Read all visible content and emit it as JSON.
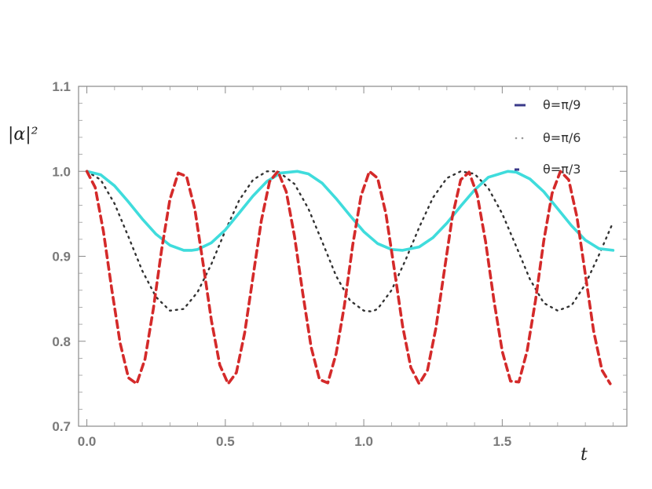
{
  "chart_data": {
    "type": "line",
    "title": "",
    "xlabel": "t",
    "ylabel": "|α|²",
    "xlim": [
      -0.03,
      1.95
    ],
    "ylim": [
      0.7,
      1.1
    ],
    "x_ticks": [
      0.0,
      0.5,
      1.0,
      1.5
    ],
    "x_tick_labels": [
      "0.0",
      "0.5",
      "1.0",
      "1.5"
    ],
    "y_ticks": [
      0.7,
      0.8,
      0.9,
      1.0,
      1.1
    ],
    "y_tick_labels": [
      "0.7",
      "0.8",
      "0.9",
      "1.0",
      "1.1"
    ],
    "grid": false,
    "legend_position": "top-right",
    "series": [
      {
        "name": "θ=π/9",
        "color": "#3fdcdc",
        "style": "solid",
        "legend_color": "#3a3a8a",
        "x": [
          0.0,
          0.05,
          0.1,
          0.15,
          0.2,
          0.25,
          0.3,
          0.35,
          0.38,
          0.4,
          0.45,
          0.5,
          0.55,
          0.6,
          0.65,
          0.7,
          0.76,
          0.8,
          0.85,
          0.9,
          0.95,
          1.0,
          1.05,
          1.1,
          1.14,
          1.2,
          1.25,
          1.3,
          1.35,
          1.4,
          1.45,
          1.52,
          1.55,
          1.6,
          1.65,
          1.7,
          1.75,
          1.8,
          1.85,
          1.9
        ],
        "y": [
          1.0,
          0.996,
          0.983,
          0.964,
          0.944,
          0.926,
          0.913,
          0.907,
          0.907,
          0.908,
          0.916,
          0.931,
          0.951,
          0.971,
          0.988,
          0.998,
          1.0,
          0.997,
          0.986,
          0.968,
          0.948,
          0.929,
          0.915,
          0.908,
          0.907,
          0.911,
          0.922,
          0.939,
          0.959,
          0.978,
          0.993,
          1.0,
          0.999,
          0.991,
          0.976,
          0.956,
          0.936,
          0.919,
          0.909,
          0.907
        ]
      },
      {
        "name": "θ=π/6",
        "color": "#333333",
        "style": "dotted",
        "legend_color": "#999999",
        "x": [
          0.0,
          0.05,
          0.1,
          0.15,
          0.2,
          0.25,
          0.3,
          0.35,
          0.4,
          0.45,
          0.5,
          0.55,
          0.6,
          0.65,
          0.69,
          0.75,
          0.8,
          0.85,
          0.9,
          0.95,
          1.0,
          1.03,
          1.05,
          1.1,
          1.15,
          1.2,
          1.25,
          1.3,
          1.35,
          1.4,
          1.45,
          1.5,
          1.55,
          1.6,
          1.65,
          1.7,
          1.75,
          1.8,
          1.85,
          1.9
        ],
        "y": [
          1.0,
          0.99,
          0.962,
          0.923,
          0.883,
          0.852,
          0.836,
          0.838,
          0.858,
          0.891,
          0.93,
          0.966,
          0.99,
          1.0,
          1.0,
          0.985,
          0.956,
          0.917,
          0.877,
          0.848,
          0.836,
          0.835,
          0.838,
          0.86,
          0.895,
          0.934,
          0.969,
          0.992,
          1.0,
          0.997,
          0.98,
          0.95,
          0.912,
          0.873,
          0.845,
          0.836,
          0.842,
          0.867,
          0.902,
          0.94
        ]
      },
      {
        "name": "θ=π/3",
        "color": "#d42a2a",
        "style": "dashed",
        "legend_color": "#3a3a8a",
        "x": [
          0.0,
          0.03,
          0.06,
          0.09,
          0.12,
          0.15,
          0.18,
          0.21,
          0.24,
          0.27,
          0.3,
          0.33,
          0.36,
          0.39,
          0.42,
          0.45,
          0.48,
          0.51,
          0.54,
          0.57,
          0.6,
          0.63,
          0.66,
          0.69,
          0.72,
          0.75,
          0.78,
          0.81,
          0.84,
          0.87,
          0.9,
          0.93,
          0.96,
          0.99,
          1.02,
          1.05,
          1.08,
          1.11,
          1.14,
          1.17,
          1.2,
          1.23,
          1.26,
          1.29,
          1.32,
          1.35,
          1.38,
          1.41,
          1.44,
          1.47,
          1.5,
          1.53,
          1.56,
          1.59,
          1.62,
          1.65,
          1.68,
          1.71,
          1.74,
          1.77,
          1.8,
          1.83,
          1.86,
          1.89
        ],
        "y": [
          1.0,
          0.981,
          0.929,
          0.861,
          0.798,
          0.757,
          0.75,
          0.779,
          0.838,
          0.908,
          0.967,
          0.998,
          0.994,
          0.955,
          0.891,
          0.824,
          0.772,
          0.75,
          0.763,
          0.81,
          0.876,
          0.942,
          0.988,
          1.0,
          0.976,
          0.923,
          0.856,
          0.793,
          0.755,
          0.751,
          0.785,
          0.842,
          0.913,
          0.971,
          1.0,
          0.992,
          0.95,
          0.885,
          0.818,
          0.769,
          0.75,
          0.766,
          0.815,
          0.881,
          0.947,
          0.99,
          0.999,
          0.972,
          0.917,
          0.848,
          0.788,
          0.753,
          0.752,
          0.789,
          0.848,
          0.918,
          0.974,
          1.0,
          0.99,
          0.946,
          0.879,
          0.812,
          0.766,
          0.75
        ]
      }
    ]
  }
}
